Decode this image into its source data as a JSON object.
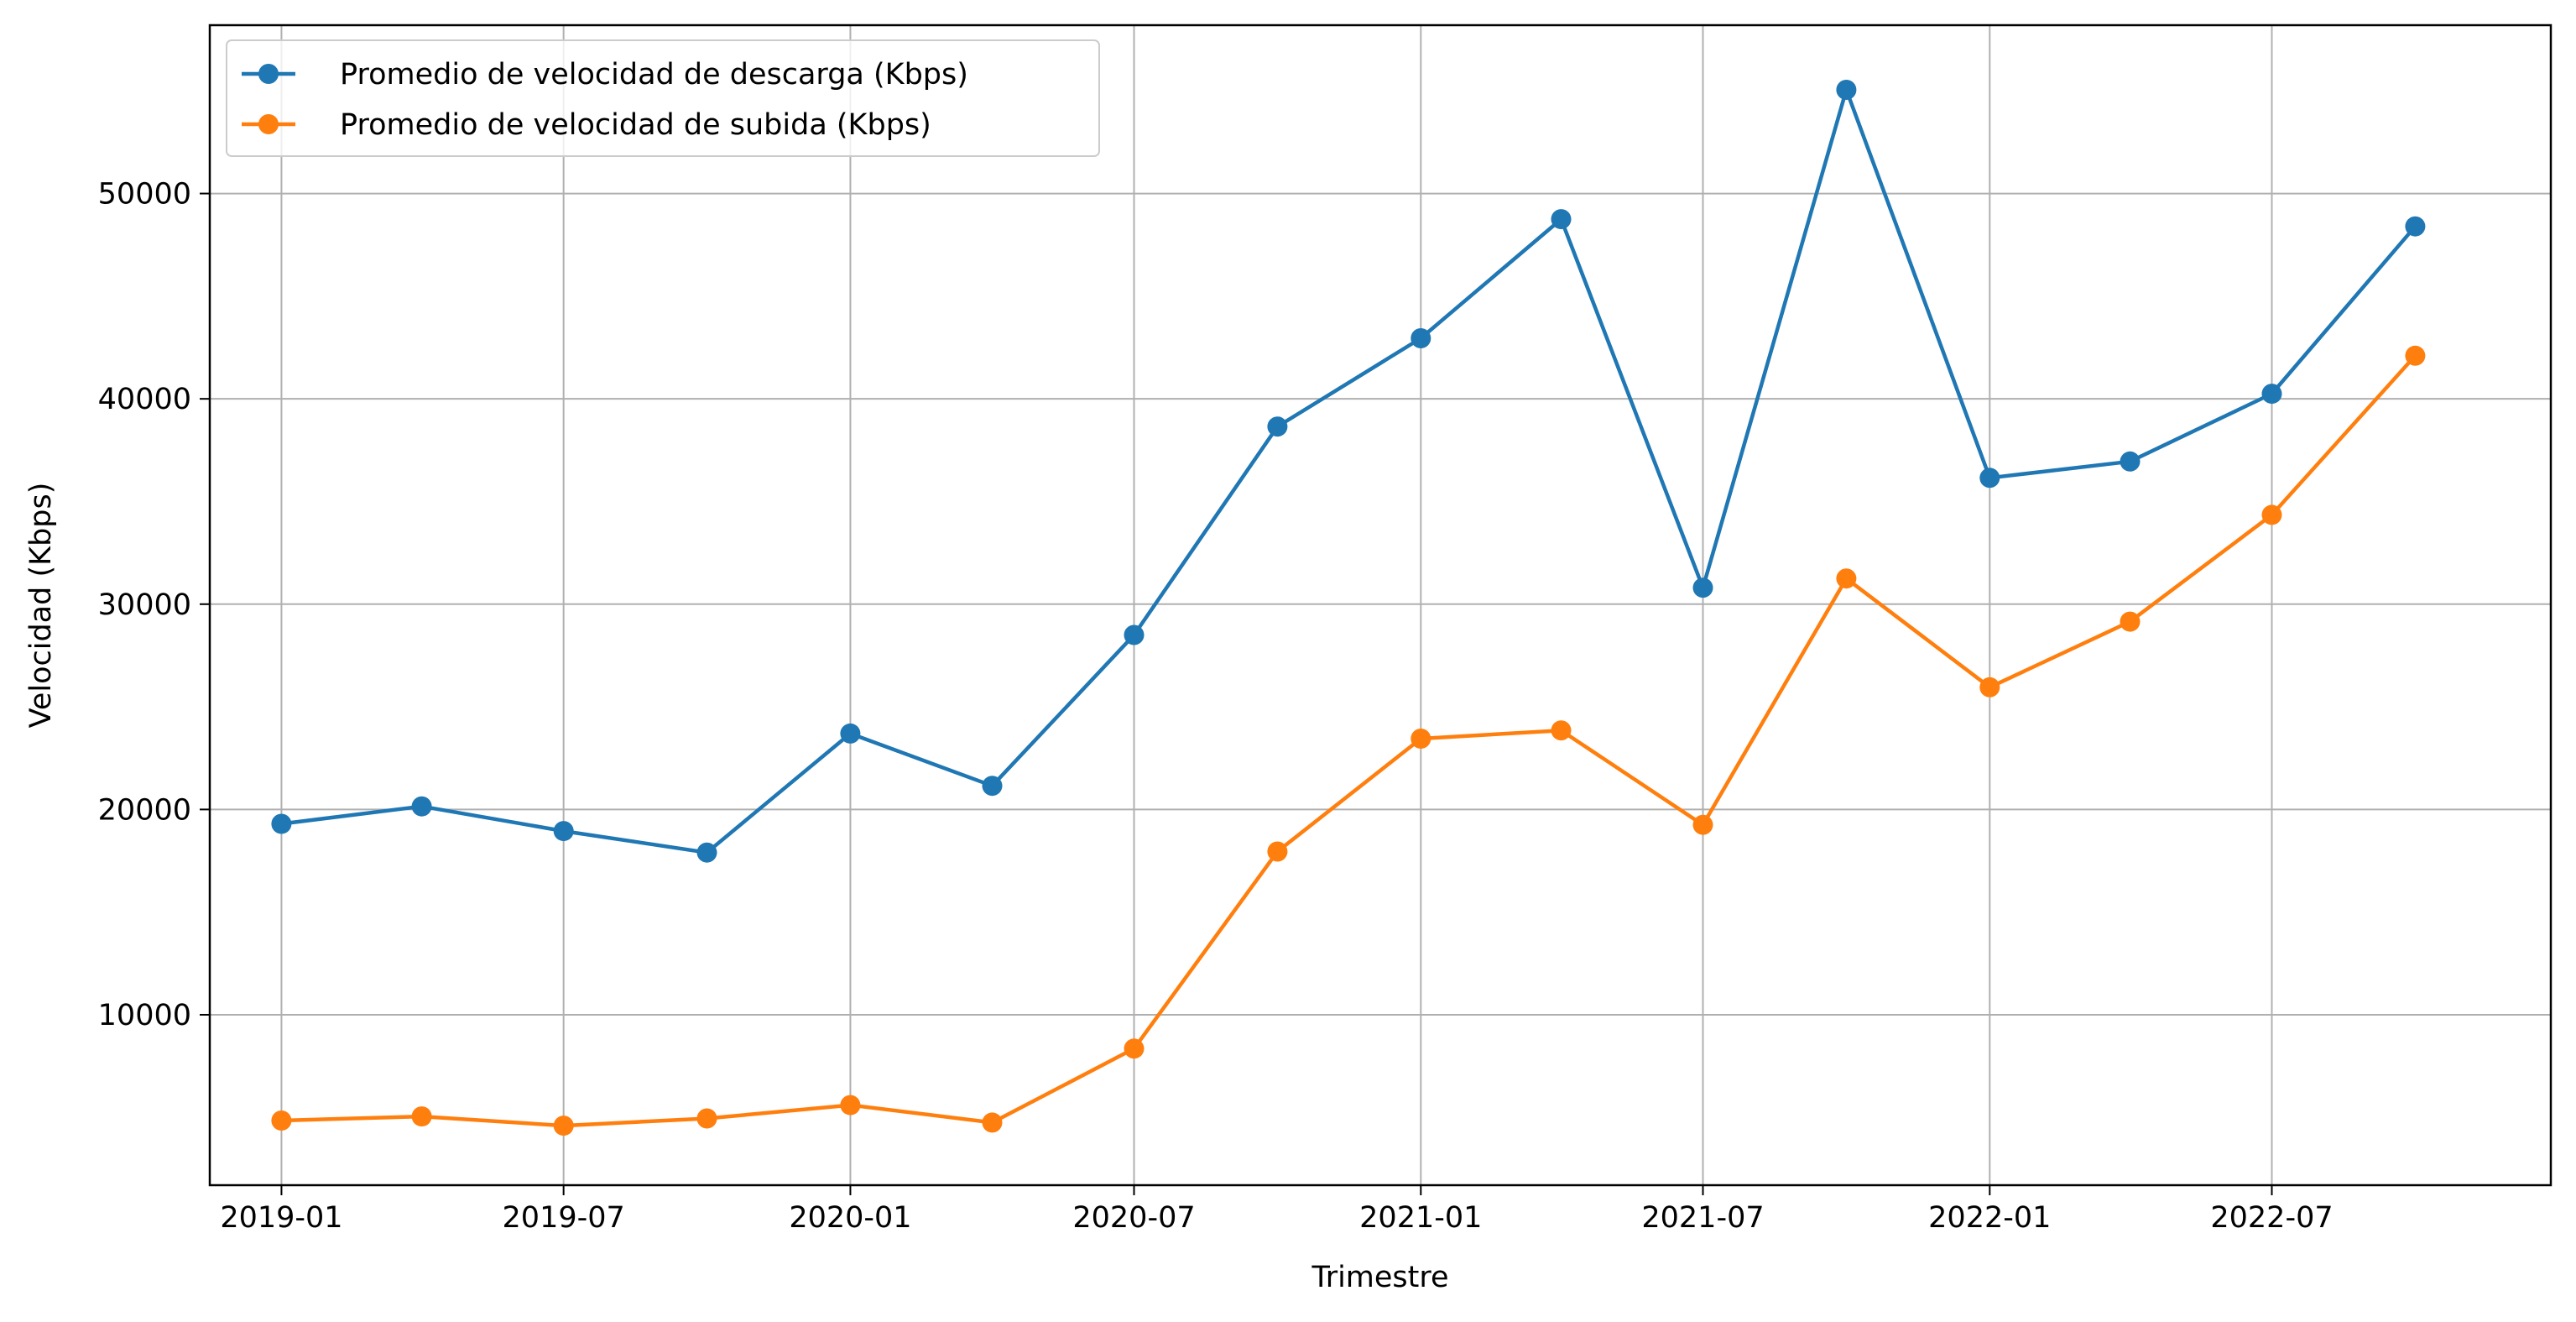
{
  "chart_data": {
    "type": "line",
    "xlabel": "Trimestre",
    "ylabel": "Velocidad (Kbps)",
    "x": [
      "2019-01-01",
      "2019-04-01",
      "2019-07-01",
      "2019-10-01",
      "2020-01-01",
      "2020-04-01",
      "2020-07-01",
      "2020-10-01",
      "2021-01-01",
      "2021-04-01",
      "2021-07-01",
      "2021-10-01",
      "2022-01-01",
      "2022-04-01",
      "2022-07-01",
      "2022-10-01"
    ],
    "xlim": [
      "2018-11-16",
      "2022-12-27"
    ],
    "x_ticks": [
      "2019-01",
      "2019-07",
      "2020-01",
      "2020-07",
      "2021-01",
      "2021-07",
      "2022-01",
      "2022-07"
    ],
    "ylim": [
      1700,
      58200
    ],
    "y_ticks": [
      "10000",
      "20000",
      "30000",
      "40000",
      "50000"
    ],
    "grid": true,
    "legend_position": "top-left",
    "series": [
      {
        "name": "Promedio de velocidad de descarga (Kbps)",
        "color": "#1f77b4",
        "values": [
          19300,
          20150,
          18950,
          17900,
          23700,
          21150,
          28500,
          38650,
          42950,
          48750,
          30800,
          55050,
          36150,
          36950,
          40250,
          48400
        ]
      },
      {
        "name": "Promedio de velocidad de subida (Kbps)",
        "color": "#ff7f0e",
        "values": [
          4850,
          5050,
          4600,
          4950,
          5600,
          4750,
          8350,
          17950,
          23450,
          23850,
          19250,
          31250,
          25950,
          29150,
          34350,
          42100
        ]
      }
    ]
  }
}
